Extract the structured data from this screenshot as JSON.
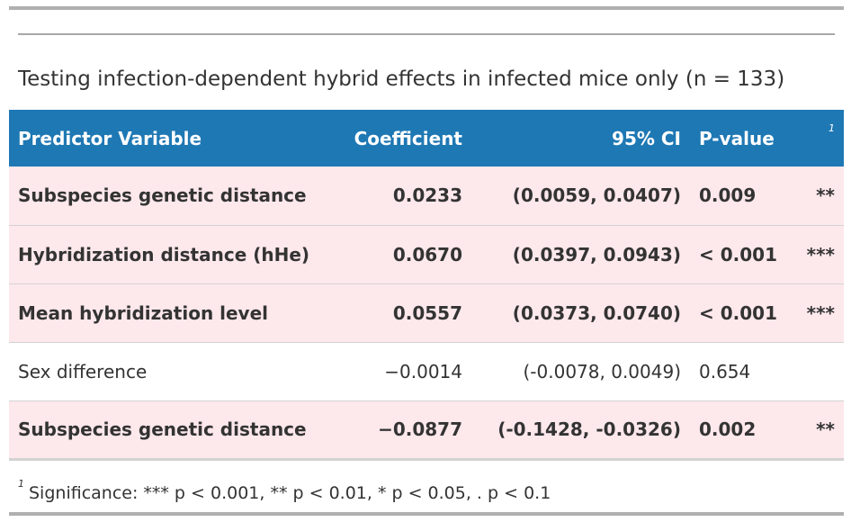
{
  "table": {
    "title": "Testing infection-dependent hybrid effects in infected mice only (n = 133)",
    "headers": {
      "predictor": "Predictor Variable",
      "coefficient": "Coefficient",
      "ci": "95% CI",
      "pvalue": "P-value",
      "footnote_mark": "1"
    },
    "rows": [
      {
        "predictor": "Subspecies genetic distance",
        "coefficient": "0.0233",
        "ci": "(0.0059, 0.0407)",
        "pvalue": "0.009",
        "stars": "**",
        "highlighted": true
      },
      {
        "predictor": "Hybridization distance (hHe)",
        "coefficient": "0.0670",
        "ci": "(0.0397, 0.0943)",
        "pvalue": "< 0.001",
        "stars": "***",
        "highlighted": true
      },
      {
        "predictor": "Mean hybridization level",
        "coefficient": "0.0557",
        "ci": "(0.0373, 0.0740)",
        "pvalue": "< 0.001",
        "stars": "***",
        "highlighted": true
      },
      {
        "predictor": "Sex difference",
        "coefficient": "−0.0014",
        "ci": "(-0.0078, 0.0049)",
        "pvalue": "0.654",
        "stars": "",
        "highlighted": false
      },
      {
        "predictor": "Subspecies genetic distance",
        "coefficient": "−0.0877",
        "ci": "(-0.1428, -0.0326)",
        "pvalue": "0.002",
        "stars": "**",
        "highlighted": true
      }
    ],
    "footnote": {
      "mark": "1",
      "text": "Significance: *** p < 0.001, ** p < 0.01, * p < 0.05, . p < 0.1"
    },
    "colors": {
      "header_background": "#1e78b4",
      "header_text": "#ffffff",
      "highlight_row": "#fde8ec",
      "border": "#b0b0b0"
    }
  }
}
